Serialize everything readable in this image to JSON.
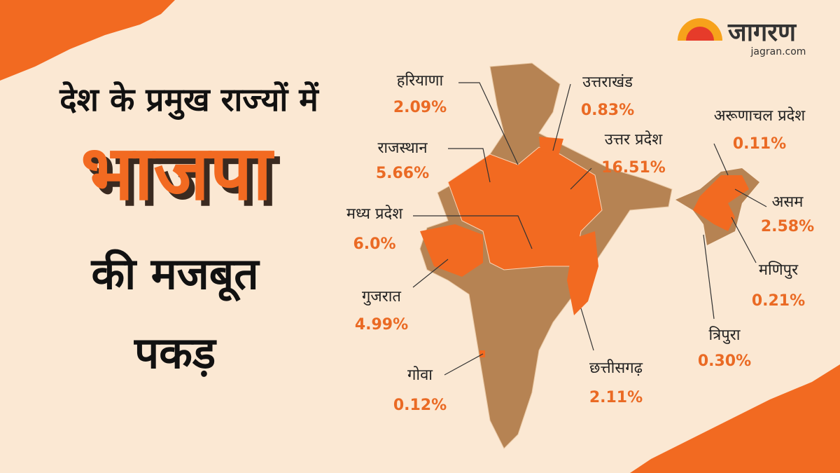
{
  "header": {
    "line1": "देश के प्रमुख राज्यों में",
    "line2": "भाजपा",
    "line3": "की मजबूत",
    "line4": "पकड़"
  },
  "brand": {
    "name": "जागरण",
    "url": "jagran.com"
  },
  "regions": [
    {
      "name": "हरियाणा",
      "value": "2.09%"
    },
    {
      "name": "उत्तराखंड",
      "value": "0.83%"
    },
    {
      "name": "अरूणाचल प्रदेश",
      "value": "0.11%"
    },
    {
      "name": "राजस्थान",
      "value": "5.66%"
    },
    {
      "name": "उत्तर प्रदेश",
      "value": "16.51%"
    },
    {
      "name": "असम",
      "value": "2.58%"
    },
    {
      "name": "मध्य प्रदेश",
      "value": "6.0%"
    },
    {
      "name": "मणिपुर",
      "value": "0.21%"
    },
    {
      "name": "गुजरात",
      "value": "4.99%"
    },
    {
      "name": "त्रिपुरा",
      "value": "0.30%"
    },
    {
      "name": "गोवा",
      "value": "0.12%"
    },
    {
      "name": "छत्तीसगढ़",
      "value": "2.11%"
    }
  ]
}
